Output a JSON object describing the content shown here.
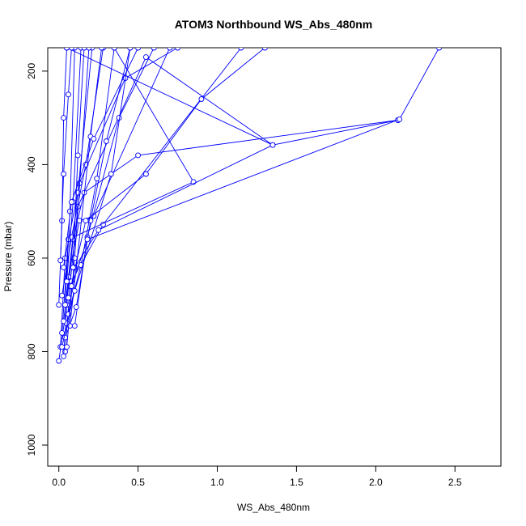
{
  "chart_data": {
    "type": "line",
    "title": "ATOM3 Northbound WS_Abs_480nm",
    "xlabel": "WS_Abs_480nm",
    "ylabel": "Pressure (mbar)",
    "xlim": [
      -0.07,
      2.79
    ],
    "ylim": [
      1045,
      150
    ],
    "y_reversed": true,
    "x_ticks": [
      0.0,
      0.5,
      1.0,
      1.5,
      2.0,
      2.5
    ],
    "x_tick_labels": [
      "0.0",
      "0.5",
      "1.0",
      "1.5",
      "2.0",
      "2.5"
    ],
    "y_ticks": [
      200,
      400,
      600,
      800,
      1000
    ],
    "y_tick_labels": [
      "200",
      "400",
      "600",
      "800",
      "1000"
    ],
    "series_color": "#0000ff",
    "grid": false,
    "series": [
      {
        "x": [
          0.04,
          0.07,
          0.12,
          0.55,
          1.35,
          0.05
        ],
        "y": [
          800,
          660,
          490,
          170,
          358,
          150
        ]
      },
      {
        "x": [
          0.0,
          0.05,
          0.09,
          0.16,
          0.5,
          2.14
        ],
        "y": [
          820,
          700,
          560,
          460,
          380,
          305
        ]
      },
      {
        "x": [
          0.03,
          0.06,
          0.13,
          0.22,
          0.7
        ],
        "y": [
          810,
          640,
          520,
          510,
          150
        ]
      },
      {
        "x": [
          0.08,
          0.28,
          1.15
        ],
        "y": [
          650,
          528,
          150
        ]
      },
      {
        "x": [
          0.01,
          0.04,
          0.13,
          0.42,
          0.75
        ],
        "y": [
          790,
          600,
          440,
          215,
          150
        ]
      },
      {
        "x": [
          0.02,
          0.06,
          0.85,
          0.35
        ],
        "y": [
          760,
          560,
          437,
          150
        ]
      },
      {
        "x": [
          0.05,
          0.1,
          0.25,
          1.35,
          2.14
        ],
        "y": [
          740,
          620,
          540,
          358,
          305
        ]
      },
      {
        "x": [
          0.1,
          0.18,
          0.38,
          0.6
        ],
        "y": [
          745,
          555,
          300,
          150
        ]
      },
      {
        "x": [
          0.04,
          0.11,
          0.2,
          0.3,
          0.45
        ],
        "y": [
          770,
          705,
          520,
          350,
          150
        ]
      },
      {
        "x": [
          0.06,
          0.14,
          0.24,
          0.35
        ],
        "y": [
          720,
          615,
          430,
          150
        ]
      },
      {
        "x": [
          0.02,
          0.08,
          0.17,
          0.28
        ],
        "y": [
          680,
          555,
          400,
          150
        ]
      },
      {
        "x": [
          0.07,
          0.2,
          0.27
        ],
        "y": [
          745,
          340,
          150
        ]
      },
      {
        "x": [
          0.03,
          0.12,
          0.21
        ],
        "y": [
          735,
          460,
          150
        ]
      },
      {
        "x": [
          0.05,
          0.1,
          0.19
        ],
        "y": [
          790,
          600,
          150
        ]
      },
      {
        "x": [
          0.06,
          0.17,
          0.55,
          0.9,
          1.3
        ],
        "y": [
          685,
          520,
          420,
          260,
          150
        ]
      },
      {
        "x": [
          0.04,
          0.07,
          0.1
        ],
        "y": [
          700,
          500,
          150
        ]
      },
      {
        "x": [
          0.05,
          0.09,
          0.14
        ],
        "y": [
          650,
          480,
          150
        ]
      },
      {
        "x": [
          0.0,
          0.02,
          0.03,
          0.05
        ],
        "y": [
          700,
          520,
          300,
          150
        ]
      },
      {
        "x": [
          0.01,
          0.03,
          0.06,
          0.08
        ],
        "y": [
          605,
          420,
          250,
          150
        ]
      },
      {
        "x": [
          0.08,
          0.18,
          2.15,
          2.4
        ],
        "y": [
          660,
          560,
          303,
          150
        ]
      },
      {
        "x": [
          0.02,
          0.1,
          0.33,
          0.45
        ],
        "y": [
          790,
          670,
          420,
          150
        ]
      },
      {
        "x": [
          0.09,
          0.12,
          0.16
        ],
        "y": [
          620,
          380,
          150
        ]
      },
      {
        "x": [
          0.03,
          0.08,
          0.22,
          0.5
        ],
        "y": [
          620,
          480,
          345,
          150
        ]
      }
    ]
  }
}
